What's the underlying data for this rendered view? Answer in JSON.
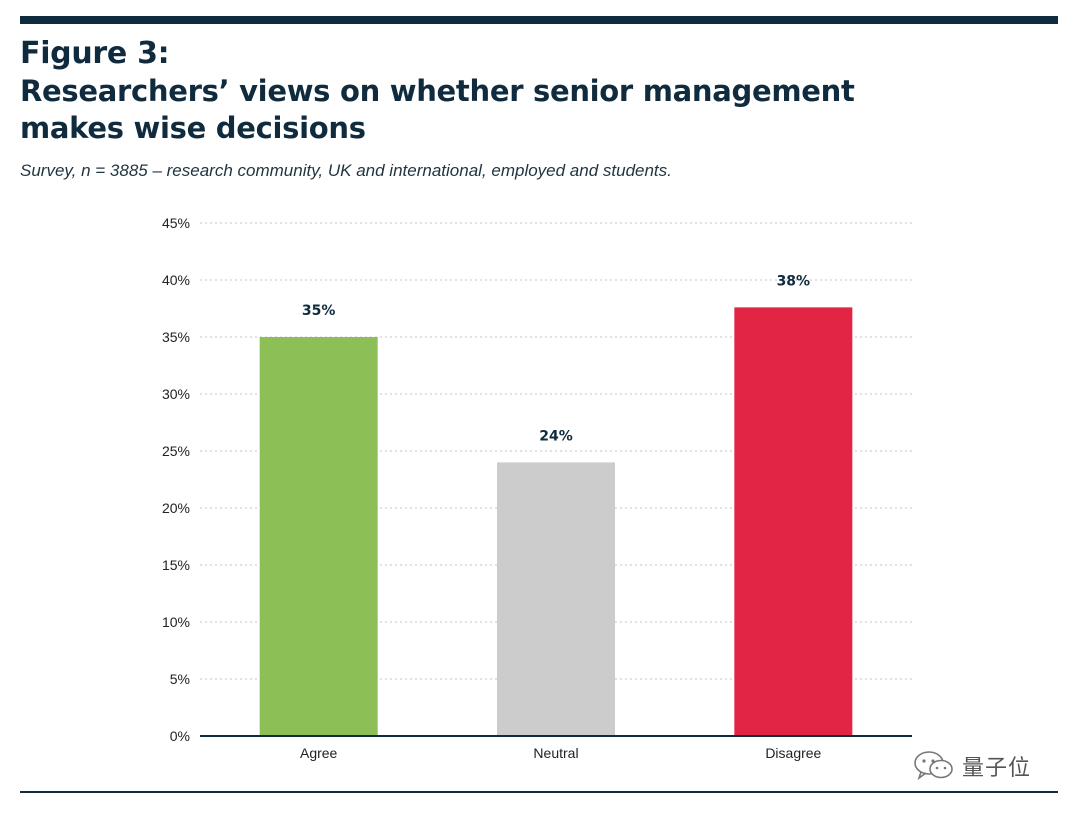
{
  "header": {
    "figure_label": "Figure 3:",
    "title": "Researchers’ views on whether senior management makes wise decisions",
    "subtitle": "Survey, n = 3885 – research community, UK and international, employed and students."
  },
  "chart_data": {
    "type": "bar",
    "title": "Researchers’ views on whether senior management makes wise decisions",
    "categories": [
      "Agree",
      "Neutral",
      "Disagree"
    ],
    "values": [
      35,
      24,
      37.6
    ],
    "data_labels": [
      "35%",
      "24%",
      "38%"
    ],
    "colors": [
      "#8dbf57",
      "#cccccc",
      "#e22445"
    ],
    "xlabel": "",
    "ylabel": "",
    "ylim": [
      0,
      45
    ],
    "yticks": [
      0,
      5,
      10,
      15,
      20,
      25,
      30,
      35,
      40,
      45
    ],
    "ytick_labels": [
      "0%",
      "5%",
      "10%",
      "15%",
      "20%",
      "25%",
      "30%",
      "35%",
      "40%",
      "45%"
    ],
    "grid": true,
    "legend": "none"
  },
  "watermark": {
    "text": "量子位",
    "icon": "wechat-icon"
  }
}
